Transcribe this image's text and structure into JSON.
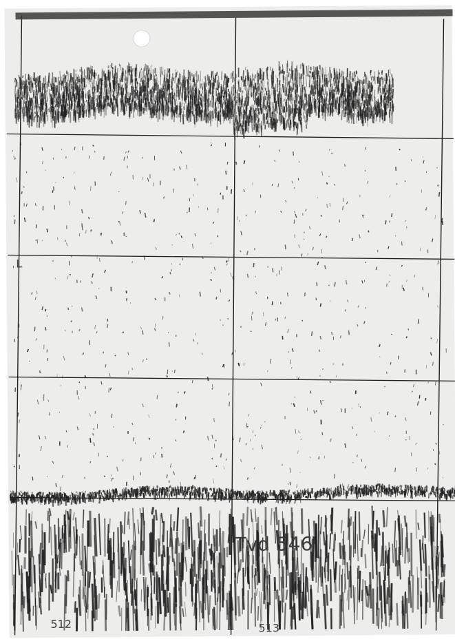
{
  "image": {
    "kind": "scanned echogram chart",
    "paper_color": "#efefed",
    "ink_color": "#202020",
    "grid_color": "#1f1f1f"
  },
  "labels": {
    "left_marker": "L",
    "handwritten_station": "Tvd 546",
    "bottom_marks": [
      "512",
      "513"
    ]
  },
  "features": {
    "surface_layer": "dense speckled band near top",
    "scattered_targets": "sparse dots in middle water column",
    "bottom_echo": "broken bottom line with strong tails"
  }
}
